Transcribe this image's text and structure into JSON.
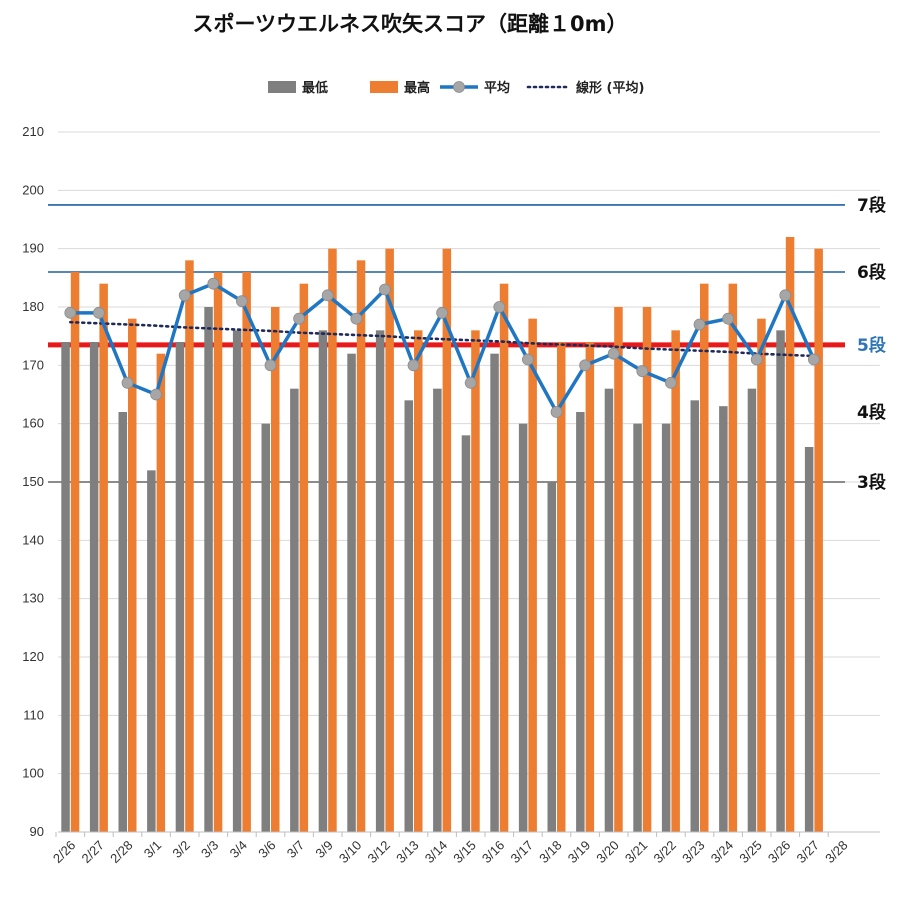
{
  "chart_data": {
    "type": "bar",
    "title": "スポーツウエルネス吹矢スコア（距離１0m）",
    "categories": [
      "2/26",
      "2/27",
      "2/28",
      "3/1",
      "3/2",
      "3/3",
      "3/4",
      "3/6",
      "3/7",
      "3/9",
      "3/10",
      "3/12",
      "3/13",
      "3/14",
      "3/15",
      "3/16",
      "3/17",
      "3/18",
      "3/19",
      "3/20",
      "3/21",
      "3/22",
      "3/23",
      "3/24",
      "3/25",
      "3/26",
      "3/27",
      "3/28"
    ],
    "series": [
      {
        "name": "最低",
        "kind": "bar",
        "color": "#7f7f7f",
        "values": [
          174,
          174,
          162,
          152,
          174,
          180,
          176,
          160,
          166,
          176,
          172,
          176,
          164,
          166,
          158,
          172,
          160,
          150,
          162,
          166,
          160,
          160,
          164,
          163,
          166,
          176,
          156,
          null
        ]
      },
      {
        "name": "最高",
        "kind": "bar",
        "color": "#ed7d31",
        "values": [
          186,
          184,
          178,
          172,
          188,
          186,
          186,
          180,
          184,
          190,
          188,
          190,
          176,
          190,
          176,
          184,
          178,
          174,
          174,
          180,
          180,
          176,
          184,
          184,
          178,
          192,
          190,
          null
        ]
      },
      {
        "name": "平均",
        "kind": "line",
        "color": "#1f77c4",
        "marker_color": "#a6a6a6",
        "values": [
          179,
          179,
          167,
          165,
          182,
          184,
          181,
          170,
          178,
          182,
          178,
          183,
          170,
          179,
          167,
          180,
          171,
          162,
          170,
          172,
          169,
          167,
          177,
          178,
          171,
          182,
          171,
          null
        ]
      },
      {
        "name": "線形 (平均)",
        "kind": "trendline",
        "color": "#1f2a5a",
        "values": [
          177.4,
          177.2,
          177.0,
          176.8,
          176.5,
          176.3,
          176.1,
          175.9,
          175.6,
          175.4,
          175.2,
          175.0,
          174.7,
          174.5,
          174.3,
          174.1,
          173.8,
          173.6,
          173.4,
          173.2,
          172.9,
          172.7,
          172.5,
          172.3,
          172.0,
          171.8,
          171.6,
          null
        ]
      }
    ],
    "ylim": [
      90,
      210
    ],
    "yticks": [
      90,
      100,
      110,
      120,
      130,
      140,
      150,
      160,
      170,
      180,
      190,
      200,
      210
    ],
    "grid": true,
    "legend_position": "top",
    "reference_lines": [
      {
        "label": "7段",
        "value": 197.5,
        "color": "#1f5fa6",
        "label_color": "#111111"
      },
      {
        "label": "6段",
        "value": 186,
        "color": "#1f5fa6",
        "label_color": "#111111"
      },
      {
        "label": "5段",
        "value": 173.5,
        "color": "#e8191a",
        "label_color": "#2e75b6"
      },
      {
        "label": "4段",
        "value": 162,
        "color": "none",
        "label_color": "#111111"
      },
      {
        "label": "3段",
        "value": 150,
        "color": "#666666",
        "label_color": "#111111"
      }
    ]
  }
}
